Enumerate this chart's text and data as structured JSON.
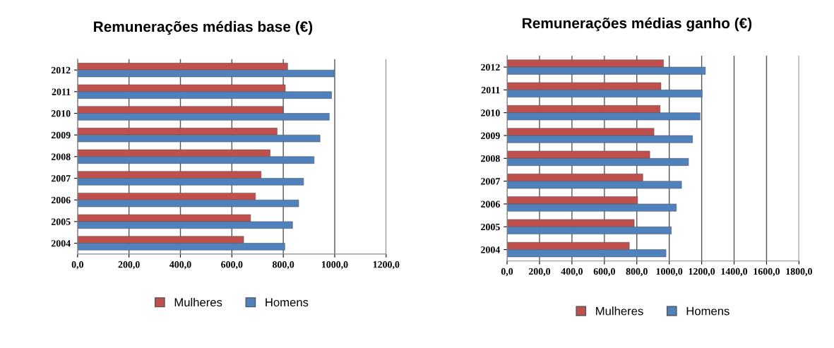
{
  "chart_data": [
    {
      "type": "bar",
      "orientation": "horizontal",
      "title": "Remunerações médias base (€)",
      "categories": [
        "2012",
        "2011",
        "2010",
        "2009",
        "2008",
        "2007",
        "2006",
        "2005",
        "2004"
      ],
      "series": [
        {
          "name": "Mulheres",
          "color": "#c0504d",
          "values": [
            817,
            808,
            799,
            776,
            749,
            714,
            692,
            673,
            646
          ]
        },
        {
          "name": "Homens",
          "color": "#4f81bd",
          "values": [
            998,
            988,
            979,
            943,
            920,
            879,
            860,
            836,
            806
          ]
        }
      ],
      "xlim": [
        0,
        1200
      ],
      "xticks": [
        {
          "value": 0,
          "label": "0,0"
        },
        {
          "value": 200,
          "label": "200,0"
        },
        {
          "value": 400,
          "label": "400,0"
        },
        {
          "value": 600,
          "label": "600,0"
        },
        {
          "value": 800,
          "label": "800,0"
        },
        {
          "value": 1000,
          "label": "1000,0"
        },
        {
          "value": 1200,
          "label": "1200,0"
        }
      ],
      "grid": "x",
      "legend": "bottom"
    },
    {
      "type": "bar",
      "orientation": "horizontal",
      "title": "Remunerações médias ganho (€)",
      "categories": [
        "2012",
        "2011",
        "2010",
        "2009",
        "2008",
        "2007",
        "2006",
        "2005",
        "2004"
      ],
      "series": [
        {
          "name": "Mulheres",
          "color": "#c0504d",
          "values": [
            965,
            949,
            944,
            906,
            880,
            837,
            805,
            784,
            754
          ]
        },
        {
          "name": "Homens",
          "color": "#4f81bd",
          "values": [
            1223,
            1203,
            1190,
            1144,
            1119,
            1076,
            1044,
            1013,
            980
          ]
        }
      ],
      "xlim": [
        0,
        1800
      ],
      "xticks": [
        {
          "value": 0,
          "label": "0,0"
        },
        {
          "value": 200,
          "label": "200,0"
        },
        {
          "value": 400,
          "label": "400,0"
        },
        {
          "value": 600,
          "label": "600,0"
        },
        {
          "value": 800,
          "label": "800,0"
        },
        {
          "value": 1000,
          "label": "1000,0"
        },
        {
          "value": 1200,
          "label": "1200,0"
        },
        {
          "value": 1400,
          "label": "1400,0"
        },
        {
          "value": 1600,
          "label": "1600,0"
        },
        {
          "value": 1800,
          "label": "1800,0"
        }
      ],
      "grid": "x",
      "legend": "bottom"
    }
  ]
}
